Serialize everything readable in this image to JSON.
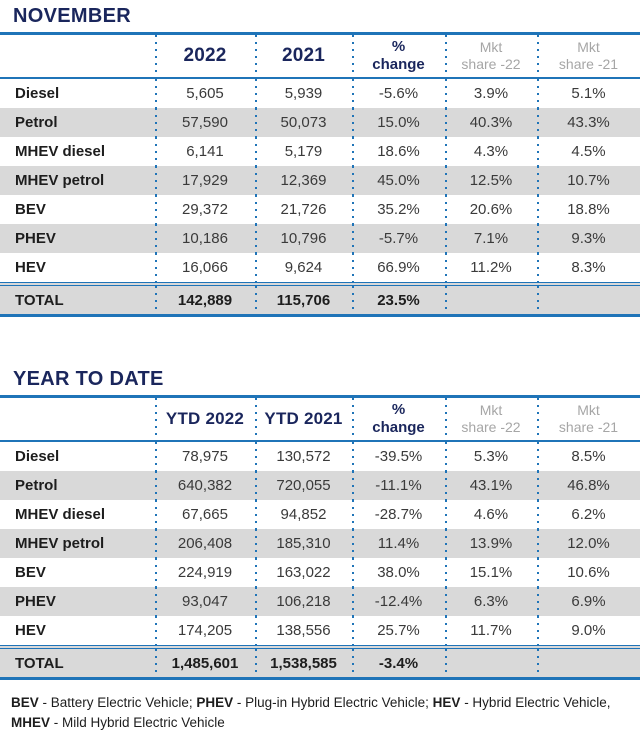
{
  "colors": {
    "navy_text": "#1a265c",
    "blue_lines": "#1f74b8",
    "row_stripe": "#d9d9d9",
    "muted_header_text": "#a6a6a6",
    "label_text": "#1d1d1d",
    "value_text": "#3a3a3a"
  },
  "ui": {
    "tables": [
      {
        "title": "NOVEMBER",
        "h_year_a": "2022",
        "h_year_b": "2021",
        "h_pct_1": "%",
        "h_pct_2": "change",
        "h_mkt22_1": "Mkt",
        "h_mkt22_2": "share -22",
        "h_mkt21_1": "Mkt",
        "h_mkt21_2": "share -21"
      },
      {
        "title": "YEAR TO DATE",
        "h_year_a": "YTD 2022",
        "h_year_b": "YTD 2021",
        "h_pct_1": "%",
        "h_pct_2": "change",
        "h_mkt22_1": "Mkt",
        "h_mkt22_2": "share -22",
        "h_mkt21_1": "Mkt",
        "h_mkt21_2": "share -21"
      }
    ],
    "footnote": {
      "bev_abbr": "BEV",
      "bev_def": " - Battery Electric Vehicle; ",
      "phev_abbr": "PHEV",
      "phev_def": " - Plug-in Hybrid Electric Vehicle; ",
      "hev_abbr": "HEV",
      "hev_def": " - Hybrid Electric Vehicle,",
      "mhev_abbr": "MHEV",
      "mhev_def": " - Mild Hybrid Electric Vehicle"
    }
  },
  "chart_data": [
    {
      "type": "table",
      "title": "NOVEMBER",
      "columns": [
        "",
        "2022",
        "2021",
        "% change",
        "Mkt share -22",
        "Mkt share -21"
      ],
      "rows": [
        [
          "Diesel",
          "5,605",
          "5,939",
          "-5.6%",
          "3.9%",
          "5.1%"
        ],
        [
          "Petrol",
          "57,590",
          "50,073",
          "15.0%",
          "40.3%",
          "43.3%"
        ],
        [
          "MHEV diesel",
          "6,141",
          "5,179",
          "18.6%",
          "4.3%",
          "4.5%"
        ],
        [
          "MHEV petrol",
          "17,929",
          "12,369",
          "45.0%",
          "12.5%",
          "10.7%"
        ],
        [
          "BEV",
          "29,372",
          "21,726",
          "35.2%",
          "20.6%",
          "18.8%"
        ],
        [
          "PHEV",
          "10,186",
          "10,796",
          "-5.7%",
          "7.1%",
          "9.3%"
        ],
        [
          "HEV",
          "16,066",
          "9,624",
          "66.9%",
          "11.2%",
          "8.3%"
        ],
        [
          "TOTAL",
          "142,889",
          "115,706",
          "23.5%",
          "",
          ""
        ]
      ]
    },
    {
      "type": "table",
      "title": "YEAR TO DATE",
      "columns": [
        "",
        "YTD 2022",
        "YTD 2021",
        "% change",
        "Mkt share -22",
        "Mkt share -21"
      ],
      "rows": [
        [
          "Diesel",
          "78,975",
          "130,572",
          "-39.5%",
          "5.3%",
          "8.5%"
        ],
        [
          "Petrol",
          "640,382",
          "720,055",
          "-11.1%",
          "43.1%",
          "46.8%"
        ],
        [
          "MHEV diesel",
          "67,665",
          "94,852",
          "-28.7%",
          "4.6%",
          "6.2%"
        ],
        [
          "MHEV petrol",
          "206,408",
          "185,310",
          "11.4%",
          "13.9%",
          "12.0%"
        ],
        [
          "BEV",
          "224,919",
          "163,022",
          "38.0%",
          "15.1%",
          "10.6%"
        ],
        [
          "PHEV",
          "93,047",
          "106,218",
          "-12.4%",
          "6.3%",
          "6.9%"
        ],
        [
          "HEV",
          "174,205",
          "138,556",
          "25.7%",
          "11.7%",
          "9.0%"
        ],
        [
          "TOTAL",
          "1,485,601",
          "1,538,585",
          "-3.4%",
          "",
          ""
        ]
      ]
    }
  ]
}
